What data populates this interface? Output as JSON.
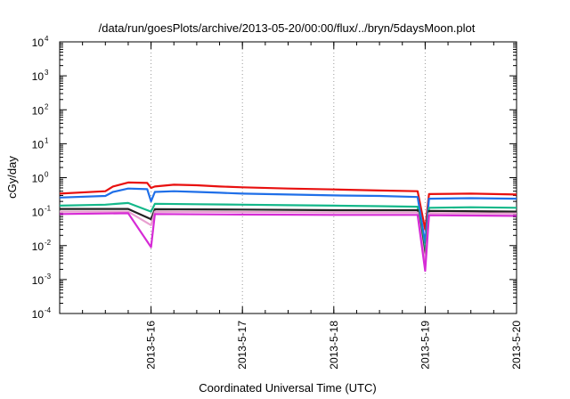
{
  "chart_data": {
    "type": "line",
    "title": "/data/run/goesPlots/archive/2013-05-20/00:00/flux/../bryn/5daysMoon.plot",
    "xlabel": "Coordinated Universal Time (UTC)",
    "ylabel": "cGy/day",
    "yscale": "log",
    "ylim": [
      0.0001,
      10000
    ],
    "y_ticks": [
      {
        "base": "10",
        "exp": "-4"
      },
      {
        "base": "10",
        "exp": "-3"
      },
      {
        "base": "10",
        "exp": "-2"
      },
      {
        "base": "10",
        "exp": "-1"
      },
      {
        "base": "10",
        "exp": "0"
      },
      {
        "base": "10",
        "exp": "1"
      },
      {
        "base": "10",
        "exp": "2"
      },
      {
        "base": "10",
        "exp": "3"
      },
      {
        "base": "10",
        "exp": "4"
      }
    ],
    "xlim": [
      "2013-05-15 00:00",
      "2013-05-20 00:00"
    ],
    "x_ticks": [
      "2013-5-16",
      "2013-5-17",
      "2013-5-18",
      "2013-5-19",
      "2013-5-20"
    ],
    "grid": {
      "x": true,
      "y": false,
      "style": "dotted"
    },
    "legend": "none",
    "series": [
      {
        "color": "#e8100f",
        "values": [
          [
            "2013-05-15 00:00",
            0.34
          ],
          [
            "2013-05-15 12:00",
            0.4
          ],
          [
            "2013-05-15 14:00",
            0.55
          ],
          [
            "2013-05-15 18:00",
            0.72
          ],
          [
            "2013-05-15 23:00",
            0.7
          ],
          [
            "2013-05-16 00:00",
            0.5
          ],
          [
            "2013-05-16 01:00",
            0.55
          ],
          [
            "2013-05-16 06:00",
            0.62
          ],
          [
            "2013-05-16 12:00",
            0.6
          ],
          [
            "2013-05-16 18:00",
            0.55
          ],
          [
            "2013-05-17 00:00",
            0.52
          ],
          [
            "2013-05-17 12:00",
            0.48
          ],
          [
            "2013-05-18 00:00",
            0.45
          ],
          [
            "2013-05-18 12:00",
            0.42
          ],
          [
            "2013-05-18 22:00",
            0.4
          ],
          [
            "2013-05-19 00:00",
            0.03
          ],
          [
            "2013-05-19 01:00",
            0.33
          ],
          [
            "2013-05-19 12:00",
            0.34
          ],
          [
            "2013-05-20 00:00",
            0.32
          ]
        ]
      },
      {
        "color": "#1f6fe8",
        "values": [
          [
            "2013-05-15 00:00",
            0.26
          ],
          [
            "2013-05-15 12:00",
            0.29
          ],
          [
            "2013-05-15 14:00",
            0.38
          ],
          [
            "2013-05-15 18:00",
            0.48
          ],
          [
            "2013-05-15 23:00",
            0.46
          ],
          [
            "2013-05-16 00:00",
            0.2
          ],
          [
            "2013-05-16 01:00",
            0.38
          ],
          [
            "2013-05-16 06:00",
            0.4
          ],
          [
            "2013-05-16 12:00",
            0.38
          ],
          [
            "2013-05-16 18:00",
            0.36
          ],
          [
            "2013-05-17 00:00",
            0.34
          ],
          [
            "2013-05-17 12:00",
            0.32
          ],
          [
            "2013-05-18 00:00",
            0.3
          ],
          [
            "2013-05-18 12:00",
            0.29
          ],
          [
            "2013-05-18 22:00",
            0.27
          ],
          [
            "2013-05-19 00:00",
            0.012
          ],
          [
            "2013-05-19 01:00",
            0.24
          ],
          [
            "2013-05-19 12:00",
            0.25
          ],
          [
            "2013-05-20 00:00",
            0.24
          ]
        ]
      },
      {
        "color": "#14b88a",
        "values": [
          [
            "2013-05-15 00:00",
            0.15
          ],
          [
            "2013-05-15 12:00",
            0.16
          ],
          [
            "2013-05-15 18:00",
            0.18
          ],
          [
            "2013-05-16 00:00",
            0.1
          ],
          [
            "2013-05-16 01:00",
            0.17
          ],
          [
            "2013-05-16 12:00",
            0.165
          ],
          [
            "2013-05-17 00:00",
            0.16
          ],
          [
            "2013-05-17 12:00",
            0.155
          ],
          [
            "2013-05-18 00:00",
            0.15
          ],
          [
            "2013-05-18 12:00",
            0.145
          ],
          [
            "2013-05-18 22:00",
            0.14
          ],
          [
            "2013-05-19 00:00",
            0.006
          ],
          [
            "2013-05-19 01:00",
            0.13
          ],
          [
            "2013-05-19 12:00",
            0.135
          ],
          [
            "2013-05-20 00:00",
            0.13
          ]
        ]
      },
      {
        "color": "#222222",
        "values": [
          [
            "2013-05-15 00:00",
            0.12
          ],
          [
            "2013-05-15 18:00",
            0.12
          ],
          [
            "2013-05-16 00:00",
            0.06
          ],
          [
            "2013-05-16 01:00",
            0.118
          ],
          [
            "2013-05-17 00:00",
            0.115
          ],
          [
            "2013-05-18 00:00",
            0.11
          ],
          [
            "2013-05-18 22:00",
            0.11
          ],
          [
            "2013-05-19 00:00",
            0.004
          ],
          [
            "2013-05-19 01:00",
            0.105
          ],
          [
            "2013-05-20 00:00",
            0.1
          ]
        ]
      },
      {
        "color": "#e8a0d0",
        "values": [
          [
            "2013-05-15 00:00",
            0.1
          ],
          [
            "2013-05-15 18:00",
            0.1
          ],
          [
            "2013-05-16 00:00",
            0.04
          ],
          [
            "2013-05-16 01:00",
            0.1
          ],
          [
            "2013-05-17 00:00",
            0.098
          ],
          [
            "2013-05-18 00:00",
            0.095
          ],
          [
            "2013-05-18 22:00",
            0.094
          ],
          [
            "2013-05-19 00:00",
            0.003
          ],
          [
            "2013-05-19 01:00",
            0.09
          ],
          [
            "2013-05-20 00:00",
            0.088
          ]
        ]
      },
      {
        "color": "#d62bd6",
        "values": [
          [
            "2013-05-15 00:00",
            0.085
          ],
          [
            "2013-05-15 18:00",
            0.09
          ],
          [
            "2013-05-16 00:00",
            0.009
          ],
          [
            "2013-05-16 01:00",
            0.085
          ],
          [
            "2013-05-17 00:00",
            0.082
          ],
          [
            "2013-05-18 00:00",
            0.08
          ],
          [
            "2013-05-18 22:00",
            0.08
          ],
          [
            "2013-05-19 00:00",
            0.0018
          ],
          [
            "2013-05-19 01:00",
            0.078
          ],
          [
            "2013-05-20 00:00",
            0.075
          ]
        ]
      }
    ]
  }
}
